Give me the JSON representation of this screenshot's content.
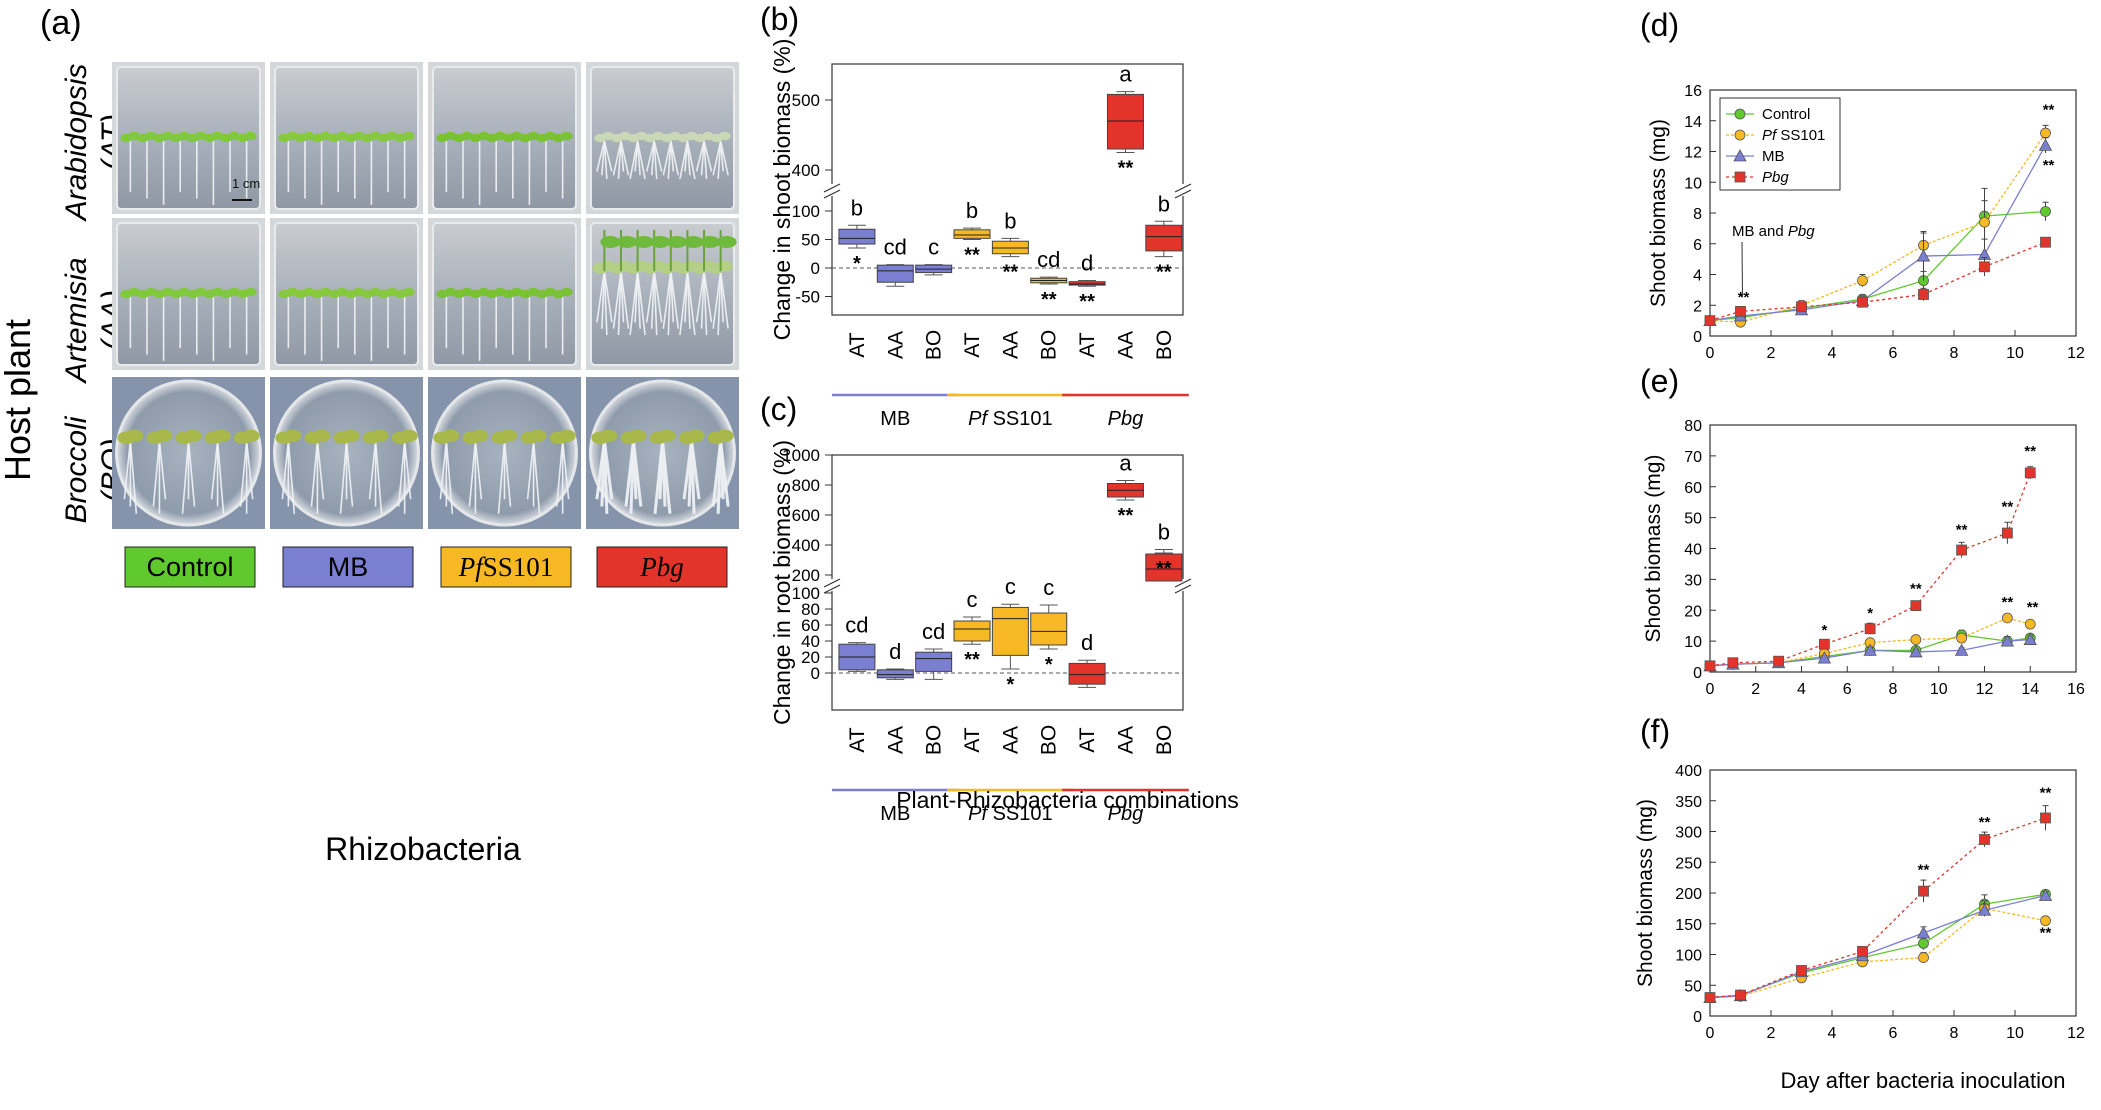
{
  "panel_a": {
    "label": "(a)",
    "host_label": "Host plant",
    "rows": [
      {
        "name": "Arabidopsis",
        "abbr": "(AT)"
      },
      {
        "name": "Artemisia",
        "abbr": "(AA)"
      },
      {
        "name": "Broccoli",
        "abbr": "(BO)"
      }
    ],
    "scale_bar": "1 cm",
    "legend_boxes": [
      {
        "label": "Control",
        "color": "#5fc92e"
      },
      {
        "label": "MB",
        "color": "#7b7fd1"
      },
      {
        "label_prefix": "Pf",
        "label": "SS101",
        "color": "#f6b923"
      },
      {
        "label": "Pbg",
        "color": "#e3342b"
      }
    ],
    "xlabel": "Rhizobacteria"
  },
  "colors": {
    "mb": "#7b7fd1",
    "pf": "#f6b923",
    "pbg": "#e3342b",
    "control": "#5fc92e"
  },
  "chart_data": [
    {
      "id": "b",
      "label": "(b)",
      "type": "box",
      "ylabel": "Change in shoot biomass (%)",
      "y_ticks_lower": [
        "-50",
        "0",
        "50",
        "100"
      ],
      "y_ticks_upper": [
        "400",
        "500"
      ],
      "categories": [
        "AT",
        "AA",
        "BO",
        "AT",
        "AA",
        "BO",
        "AT",
        "AA",
        "BO"
      ],
      "groups": [
        {
          "name": "MB",
          "prefix": "",
          "italic": false
        },
        {
          "name": "SS101",
          "prefix": "Pf",
          "italic": false
        },
        {
          "name": "Pbg",
          "prefix": "",
          "italic": true
        }
      ],
      "boxes": [
        {
          "group": 0,
          "cat": 0,
          "min": 35,
          "q1": 42,
          "med": 52,
          "q3": 68,
          "max": 75,
          "letter": "b",
          "sig": "*"
        },
        {
          "group": 0,
          "cat": 1,
          "min": -32,
          "q1": -25,
          "med": -5,
          "q3": 5,
          "max": 6,
          "letter": "cd",
          "sig": ""
        },
        {
          "group": 0,
          "cat": 2,
          "min": -12,
          "q1": -8,
          "med": -2,
          "q3": 5,
          "max": 6,
          "letter": "c",
          "sig": ""
        },
        {
          "group": 1,
          "cat": 3,
          "min": 50,
          "q1": 52,
          "med": 58,
          "q3": 67,
          "max": 70,
          "letter": "b",
          "sig": "**"
        },
        {
          "group": 1,
          "cat": 4,
          "min": 20,
          "q1": 25,
          "med": 35,
          "q3": 47,
          "max": 52,
          "letter": "b",
          "sig": "**"
        },
        {
          "group": 1,
          "cat": 5,
          "min": -28,
          "q1": -26,
          "med": -22,
          "q3": -18,
          "max": -16,
          "letter": "cd",
          "sig": "**"
        },
        {
          "group": 2,
          "cat": 6,
          "min": -32,
          "q1": -30,
          "med": -28,
          "q3": -24,
          "max": -22,
          "letter": "d",
          "sig": "**"
        },
        {
          "group": 2,
          "cat": 7,
          "min": 425,
          "q1": 430,
          "med": 470,
          "q3": 508,
          "max": 512,
          "letter": "a",
          "sig": "**"
        },
        {
          "group": 2,
          "cat": 8,
          "min": 20,
          "q1": 30,
          "med": 55,
          "q3": 75,
          "max": 82,
          "letter": "b",
          "sig": "**"
        }
      ]
    },
    {
      "id": "c",
      "label": "(c)",
      "type": "box",
      "ylabel": "Change in root biomass (%)",
      "xlabel": "Plant-Rhizobacteria combinations",
      "y_ticks_lower": [
        "0",
        "20",
        "40",
        "60",
        "80",
        "100"
      ],
      "y_ticks_upper": [
        "200",
        "400",
        "600",
        "800",
        "1000"
      ],
      "categories": [
        "AT",
        "AA",
        "BO",
        "AT",
        "AA",
        "BO",
        "AT",
        "AA",
        "BO"
      ],
      "groups": [
        {
          "name": "MB",
          "prefix": "",
          "italic": false
        },
        {
          "name": "SS101",
          "prefix": "Pf",
          "italic": false
        },
        {
          "name": "Pbg",
          "prefix": "",
          "italic": true
        }
      ],
      "boxes": [
        {
          "group": 0,
          "cat": 0,
          "min": 2,
          "q1": 4,
          "med": 20,
          "q3": 36,
          "max": 38,
          "letter": "cd",
          "sig": ""
        },
        {
          "group": 0,
          "cat": 1,
          "min": -8,
          "q1": -6,
          "med": -2,
          "q3": 4,
          "max": 5,
          "letter": "d",
          "sig": ""
        },
        {
          "group": 0,
          "cat": 2,
          "min": -8,
          "q1": 2,
          "med": 18,
          "q3": 26,
          "max": 30,
          "letter": "cd",
          "sig": ""
        },
        {
          "group": 1,
          "cat": 3,
          "min": 36,
          "q1": 40,
          "med": 55,
          "q3": 65,
          "max": 70,
          "letter": "c",
          "sig": "**"
        },
        {
          "group": 1,
          "cat": 4,
          "min": 5,
          "q1": 22,
          "med": 68,
          "q3": 82,
          "max": 86,
          "letter": "c",
          "sig": "*"
        },
        {
          "group": 1,
          "cat": 5,
          "min": 30,
          "q1": 35,
          "med": 52,
          "q3": 75,
          "max": 85,
          "letter": "c",
          "sig": "*"
        },
        {
          "group": 2,
          "cat": 6,
          "min": -18,
          "q1": -14,
          "med": -2,
          "q3": 12,
          "max": 16,
          "letter": "d",
          "sig": ""
        },
        {
          "group": 2,
          "cat": 7,
          "min": 700,
          "q1": 720,
          "med": 765,
          "q3": 810,
          "max": 830,
          "letter": "a",
          "sig": "**"
        },
        {
          "group": 2,
          "cat": 8,
          "min": 150,
          "q1": 160,
          "med": 240,
          "q3": 340,
          "max": 370,
          "letter": "b",
          "sig": "**"
        }
      ]
    },
    {
      "id": "d",
      "label": "(d)",
      "type": "line",
      "ylabel": "Shoot biomass (mg)",
      "xlim": [
        0,
        12
      ],
      "ylim": [
        0,
        16
      ],
      "x_ticks": [
        0,
        2,
        4,
        6,
        8,
        10,
        12
      ],
      "y_ticks": [
        0,
        2,
        4,
        6,
        8,
        10,
        12,
        14,
        16
      ],
      "legend": [
        "Control",
        "SS101",
        "MB",
        "Pbg"
      ],
      "legend_prefix": "Pf",
      "annotation": {
        "text_plain": "MB and ",
        "text_ital": "Pbg",
        "at_x": 1,
        "at_y": 1.6
      },
      "series": [
        {
          "name": "Control",
          "marker": "circle",
          "color": "#5fc92e",
          "x": [
            0,
            1,
            3,
            5,
            7,
            9,
            11
          ],
          "y": [
            1.0,
            1.2,
            1.8,
            2.4,
            3.6,
            7.8,
            8.1
          ],
          "err": [
            0.1,
            0.2,
            0.3,
            0.3,
            0.6,
            1.0,
            0.6
          ]
        },
        {
          "name": "SS101",
          "marker": "circle",
          "color": "#f6b923",
          "x": [
            0,
            1,
            3,
            5,
            7,
            9,
            11
          ],
          "y": [
            1.0,
            0.9,
            2.0,
            3.6,
            5.9,
            7.4,
            13.2
          ],
          "err": [
            0.1,
            0.2,
            0.3,
            0.4,
            0.8,
            2.2,
            0.5
          ]
        },
        {
          "name": "MB",
          "marker": "triangle",
          "color": "#7b7fd1",
          "x": [
            0,
            1,
            3,
            5,
            7,
            9,
            11
          ],
          "y": [
            1.0,
            1.3,
            1.7,
            2.3,
            5.2,
            5.3,
            12.4
          ],
          "err": [
            0.1,
            0.2,
            0.2,
            0.3,
            1.6,
            1.0,
            0.5
          ]
        },
        {
          "name": "Pbg",
          "marker": "square",
          "color": "#e3342b",
          "x": [
            0,
            1,
            3,
            5,
            7,
            9,
            11
          ],
          "y": [
            1.0,
            1.6,
            1.9,
            2.2,
            2.7,
            4.5,
            6.1
          ],
          "err": [
            0.1,
            0.2,
            0.2,
            0.3,
            0.4,
            0.6,
            0.2
          ]
        }
      ],
      "stars": [
        {
          "text": "**",
          "x": 1.1,
          "y": 2.2
        },
        {
          "text": "**",
          "x": 11.1,
          "y": 14.4
        },
        {
          "text": "**",
          "x": 11.1,
          "y": 10.8
        }
      ]
    },
    {
      "id": "e",
      "label": "(e)",
      "type": "line",
      "ylabel": "Shoot biomass (mg)",
      "xlim": [
        0,
        16
      ],
      "ylim": [
        0,
        80
      ],
      "x_ticks": [
        0,
        2,
        4,
        6,
        8,
        10,
        12,
        14,
        16
      ],
      "y_ticks": [
        0,
        10,
        20,
        30,
        40,
        50,
        60,
        70,
        80
      ],
      "series": [
        {
          "name": "Control",
          "marker": "circle",
          "color": "#5fc92e",
          "x": [
            0,
            1,
            3,
            5,
            7,
            9,
            11,
            13,
            14
          ],
          "y": [
            2,
            2.5,
            3,
            5,
            7,
            7,
            12,
            10,
            11
          ],
          "err": [
            0.3,
            0.4,
            0.5,
            0.8,
            1.0,
            1.0,
            1.5,
            1.5,
            1.2
          ]
        },
        {
          "name": "SS101",
          "marker": "circle",
          "color": "#f6b923",
          "x": [
            0,
            1,
            3,
            5,
            7,
            9,
            11,
            13,
            14
          ],
          "y": [
            2,
            2.5,
            3,
            6,
            9.5,
            10.5,
            11,
            17.5,
            15.5
          ],
          "err": [
            0.3,
            0.4,
            0.5,
            0.8,
            1.0,
            1.0,
            1.2,
            1.3,
            1.2
          ]
        },
        {
          "name": "MB",
          "marker": "triangle",
          "color": "#7b7fd1",
          "x": [
            0,
            1,
            3,
            5,
            7,
            9,
            11,
            13,
            14
          ],
          "y": [
            2,
            2.5,
            3,
            4.5,
            7,
            6.5,
            7,
            10,
            10.5
          ],
          "err": [
            0.3,
            0.4,
            0.5,
            0.8,
            1.0,
            0.8,
            0.8,
            1.5,
            1.2
          ]
        },
        {
          "name": "Pbg",
          "marker": "square",
          "color": "#e3342b",
          "x": [
            0,
            1,
            3,
            5,
            7,
            9,
            11,
            13,
            14
          ],
          "y": [
            2,
            3,
            3.5,
            9,
            14,
            21.5,
            39.5,
            45,
            64.5
          ],
          "err": [
            0.3,
            0.5,
            0.5,
            1.5,
            1.8,
            1.5,
            2.5,
            3.5,
            2.0
          ]
        }
      ],
      "stars": [
        {
          "text": "*",
          "x": 5,
          "y": 12
        },
        {
          "text": "*",
          "x": 7,
          "y": 17.5
        },
        {
          "text": "**",
          "x": 9,
          "y": 25.5
        },
        {
          "text": "**",
          "x": 11,
          "y": 44.5
        },
        {
          "text": "**",
          "x": 13,
          "y": 52
        },
        {
          "text": "**",
          "x": 14,
          "y": 70
        },
        {
          "text": "**",
          "x": 13,
          "y": 21
        },
        {
          "text": "**",
          "x": 14.1,
          "y": 19.5
        }
      ]
    },
    {
      "id": "f",
      "label": "(f)",
      "type": "line",
      "ylabel": "Shoot biomass (mg)",
      "xlabel": "Day after bacteria inoculation",
      "xlim": [
        0,
        12
      ],
      "ylim": [
        0,
        400
      ],
      "x_ticks": [
        0,
        2,
        4,
        6,
        8,
        10,
        12
      ],
      "y_ticks": [
        0,
        50,
        100,
        150,
        200,
        250,
        300,
        350,
        400
      ],
      "series": [
        {
          "name": "Control",
          "marker": "circle",
          "color": "#5fc92e",
          "x": [
            0,
            1,
            3,
            5,
            7,
            9,
            11
          ],
          "y": [
            30,
            34,
            70,
            95,
            118,
            182,
            198
          ],
          "err": [
            3,
            4,
            6,
            8,
            10,
            15,
            6
          ]
        },
        {
          "name": "SS101",
          "marker": "circle",
          "color": "#f6b923",
          "x": [
            0,
            1,
            3,
            5,
            7,
            9,
            11
          ],
          "y": [
            30,
            32,
            62,
            88,
            95,
            175,
            155
          ],
          "err": [
            3,
            4,
            6,
            8,
            8,
            12,
            6
          ]
        },
        {
          "name": "MB",
          "marker": "triangle",
          "color": "#7b7fd1",
          "x": [
            0,
            1,
            3,
            5,
            7,
            9,
            11
          ],
          "y": [
            30,
            33,
            72,
            98,
            135,
            172,
            196
          ],
          "err": [
            3,
            4,
            6,
            8,
            10,
            10,
            6
          ]
        },
        {
          "name": "Pbg",
          "marker": "square",
          "color": "#e3342b",
          "x": [
            0,
            1,
            3,
            5,
            7,
            9,
            11
          ],
          "y": [
            30,
            34,
            74,
            105,
            203,
            287,
            322
          ],
          "err": [
            3,
            4,
            6,
            8,
            18,
            12,
            20
          ]
        }
      ],
      "stars": [
        {
          "text": "**",
          "x": 7,
          "y": 230
        },
        {
          "text": "**",
          "x": 9,
          "y": 307
        },
        {
          "text": "**",
          "x": 11,
          "y": 355
        },
        {
          "text": "**",
          "x": 11,
          "y": 128
        }
      ]
    }
  ]
}
